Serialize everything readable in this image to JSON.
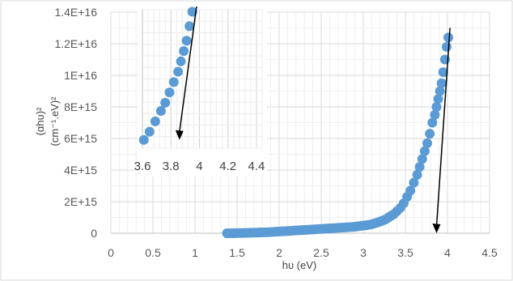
{
  "chart_data": {
    "type": "scatter",
    "xlabel": "hυ (eV)",
    "ylabel_line1": "(αhυ)²",
    "ylabel_line2": "(cm⁻¹.eV)²",
    "xlim": [
      0,
      4.5
    ],
    "ylim": [
      0,
      1.4e+16
    ],
    "x_ticks": [
      "0",
      "0.5",
      "1",
      "1.5",
      "2",
      "2.5",
      "3",
      "3.5",
      "4",
      "4.5"
    ],
    "y_ticks": [
      "0",
      "2E+15",
      "4E+15",
      "6E+15",
      "8E+15",
      "1E+16",
      "1.2E+16",
      "1.4E+16"
    ],
    "grid": true,
    "marker_color": "#5b9bd5",
    "series": [
      {
        "x": [
          1.38,
          1.41,
          1.44,
          1.47,
          1.5,
          1.53,
          1.56,
          1.59,
          1.62,
          1.65,
          1.68,
          1.71,
          1.74,
          1.77,
          1.8,
          1.83,
          1.86,
          1.89,
          1.92,
          1.95,
          1.98,
          2.01,
          2.04,
          2.07,
          2.1,
          2.13,
          2.16,
          2.19,
          2.22,
          2.25,
          2.28,
          2.31,
          2.34,
          2.37,
          2.4,
          2.43,
          2.46,
          2.49,
          2.52,
          2.55,
          2.58,
          2.61,
          2.64,
          2.67,
          2.7,
          2.73,
          2.76,
          2.79,
          2.82,
          2.85,
          2.88,
          2.91,
          2.94,
          2.97,
          3.0,
          3.03,
          3.06,
          3.09,
          3.12,
          3.15,
          3.18,
          3.21,
          3.24,
          3.27,
          3.3,
          3.33,
          3.36,
          3.4,
          3.44,
          3.48,
          3.52,
          3.56,
          3.6,
          3.64,
          3.67,
          3.7,
          3.73,
          3.76,
          3.79,
          3.82,
          3.85,
          3.87,
          3.89,
          3.91,
          3.93,
          3.95,
          3.97,
          3.99,
          4.01
        ],
        "y": [
          0,
          0,
          0,
          0,
          10000000000000.0,
          10000000000000.0,
          10000000000000.0,
          20000000000000.0,
          20000000000000.0,
          30000000000000.0,
          30000000000000.0,
          40000000000000.0,
          40000000000000.0,
          50000000000000.0,
          50000000000000.0,
          60000000000000.0,
          60000000000000.0,
          70000000000000.0,
          80000000000000.0,
          90000000000000.0,
          100000000000000.0,
          110000000000000.0,
          120000000000000.0,
          130000000000000.0,
          140000000000000.0,
          150000000000000.0,
          160000000000000.0,
          170000000000000.0,
          180000000000000.0,
          190000000000000.0,
          200000000000000.0,
          210000000000000.0,
          220000000000000.0,
          230000000000000.0,
          240000000000000.0,
          250000000000000.0,
          260000000000000.0,
          270000000000000.0,
          280000000000000.0,
          290000000000000.0,
          300000000000000.0,
          310000000000000.0,
          320000000000000.0,
          330000000000000.0,
          340000000000000.0,
          350000000000000.0,
          360000000000000.0,
          370000000000000.0,
          380000000000000.0,
          390000000000000.0,
          400000000000000.0,
          420000000000000.0,
          440000000000000.0,
          460000000000000.0,
          480000000000000.0,
          500000000000000.0,
          530000000000000.0,
          560000000000000.0,
          600000000000000.0,
          650000000000000.0,
          700000000000000.0,
          760000000000000.0,
          820000000000000.0,
          900000000000000.0,
          1000000000000000.0,
          1100000000000000.0,
          1200000000000000.0,
          1400000000000000.0,
          1600000000000000.0,
          1900000000000000.0,
          2300000000000000.0,
          2700000000000000.0,
          3200000000000000.0,
          3700000000000000.0,
          4200000000000000.0,
          4700000000000000.0,
          5200000000000000.0,
          5700000000000000.0,
          6300000000000000.0,
          7000000000000000.0,
          7500000000000000.0,
          8000000000000000.0,
          8500000000000000.0,
          9000000000000000.0,
          9500000000000000.0,
          1.02e+16,
          1.1e+16,
          1.18e+16,
          1.24e+16
        ]
      }
    ],
    "fit_line": {
      "x": [
        3.87,
        4.03
      ],
      "y": [
        0,
        1.3e+16
      ]
    },
    "inset": {
      "x_ticks": [
        "3.6",
        "3.8",
        "4",
        "4.2",
        "4.4"
      ],
      "xlim": [
        3.6,
        4.44
      ],
      "ylim": [
        6800000000000000.0,
        1.35e+16
      ],
      "series": {
        "x": [
          3.61,
          3.65,
          3.69,
          3.73,
          3.76,
          3.79,
          3.82,
          3.85,
          3.87,
          3.89,
          3.91,
          3.93,
          3.95
        ],
        "y": [
          7200000000000000.0,
          7600000000000000.0,
          8100000000000000.0,
          8600000000000000.0,
          9000000000000000.0,
          9500000000000000.0,
          1e+16,
          1.05e+16,
          1.1e+16,
          1.15e+16,
          1.2e+16,
          1.27e+16,
          1.34e+16
        ]
      },
      "fit_line": {
        "x": [
          3.98,
          3.86
        ],
        "y": [
          1.38e+16,
          7200000000000000.0
        ]
      }
    }
  }
}
